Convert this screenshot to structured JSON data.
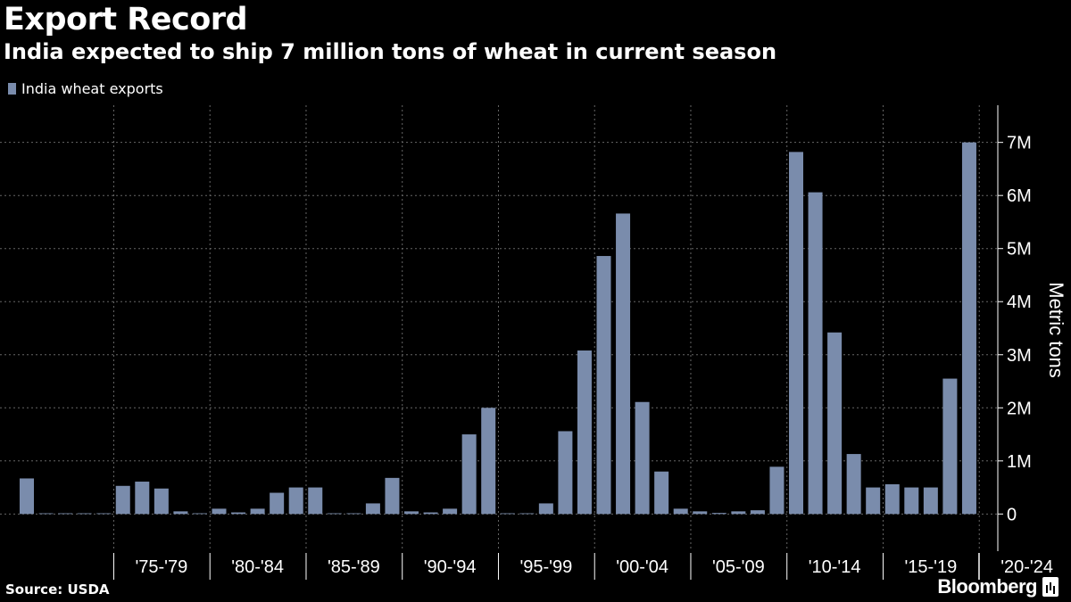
{
  "header": {
    "title": "Export Record",
    "subtitle": "India expected to ship 7 million tons of wheat in current season"
  },
  "legend": {
    "label": "India wheat exports",
    "color": "#7a8cac"
  },
  "footer": {
    "source": "Source: USDA",
    "brand": "Bloomberg"
  },
  "chart_data": {
    "type": "bar",
    "title": "Export Record",
    "subtitle": "India expected to ship 7 million tons of wheat in current season",
    "ylabel": "Metric tons",
    "xlabel": "",
    "ylim": [
      -700000,
      7700000
    ],
    "y_ticks": [
      0,
      1000000,
      2000000,
      3000000,
      4000000,
      5000000,
      6000000,
      7000000
    ],
    "y_tick_labels": [
      "0",
      "1M",
      "2M",
      "3M",
      "4M",
      "5M",
      "6M",
      "7M"
    ],
    "y_axis_position": "right",
    "grid": true,
    "legend_position": "top-left",
    "bar_color": "#7a8cac",
    "x_group_labels": [
      "'75-'79",
      "'80-'84",
      "'85-'89",
      "'90-'94",
      "'95-'99",
      "'00-'04",
      "'05-'09",
      "'10-'14",
      "'15-'19",
      "'20-'24"
    ],
    "series": [
      {
        "name": "India wheat exports",
        "values": [
          670000,
          0,
          0,
          0,
          0,
          530000,
          610000,
          480000,
          50000,
          0,
          100000,
          30000,
          100000,
          400000,
          500000,
          500000,
          10000,
          10000,
          200000,
          680000,
          50000,
          30000,
          100000,
          1500000,
          2000000,
          0,
          0,
          200000,
          1560000,
          3080000,
          4860000,
          5660000,
          2110000,
          800000,
          100000,
          50000,
          20000,
          50000,
          70000,
          890000,
          6820000,
          6060000,
          3420000,
          1130000,
          500000,
          560000,
          500000,
          500000,
          2550000,
          7000000
        ]
      }
    ]
  }
}
